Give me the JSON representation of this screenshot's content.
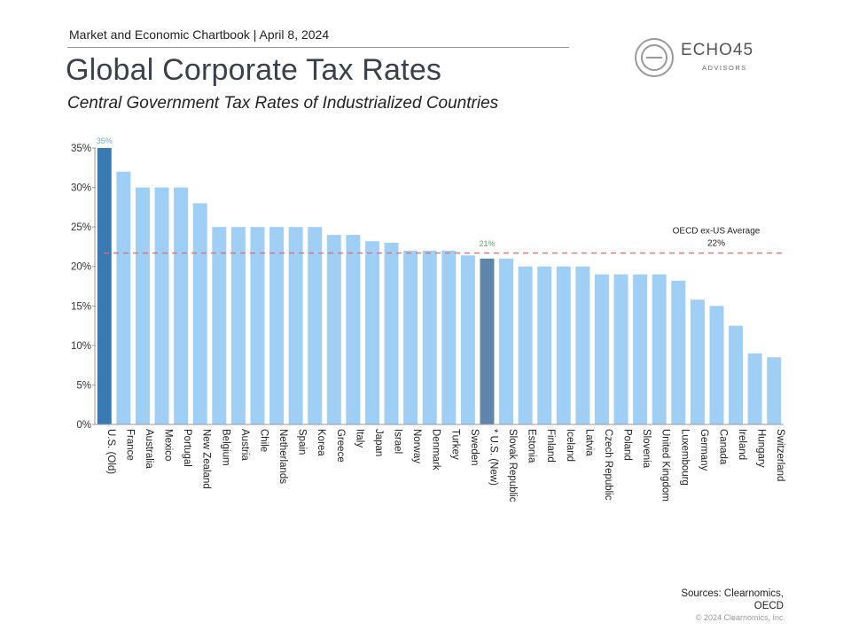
{
  "header": {
    "chartbook": "Market and Economic Chartbook | April 8, 2024",
    "title": "Global Corporate Tax Rates",
    "subtitle": "Central Government Tax Rates of Industrialized Countries"
  },
  "logo": {
    "name": "ECHO45",
    "sub": "ADVISORS"
  },
  "footer": {
    "sources_line1": "Sources: Clearnomics,",
    "sources_line2": "OECD",
    "copyright": "© 2024 Clearnomics, Inc."
  },
  "colors": {
    "bar": "#9fcff5",
    "highlight_old": "#3a7ab3",
    "highlight_new": "#5d86aa",
    "average_line": "#e07070",
    "label_old": "#6fa3d4",
    "label_new": "#59a563"
  },
  "chart_data": {
    "type": "bar",
    "categories": [
      "U.S. (Old)",
      "France",
      "Australia",
      "Mexico",
      "Portugal",
      "New Zealand",
      "Belgium",
      "Austria",
      "Chile",
      "Netherlands",
      "Spain",
      "Korea",
      "Greece",
      "Italy",
      "Japan",
      "Israel",
      "Norway",
      "Denmark",
      "Turkey",
      "Sweden",
      "* U.S. (New)",
      "Slovak Republic",
      "Estonia",
      "Finland",
      "Iceland",
      "Latvia",
      "Czech Republic",
      "Poland",
      "Slovenia",
      "United Kingdom",
      "Luxembourg",
      "Germany",
      "Canada",
      "Ireland",
      "Hungary",
      "Switzerland"
    ],
    "values": [
      35,
      32,
      30,
      30,
      30,
      28,
      25,
      25,
      25,
      25,
      25,
      25,
      24,
      24,
      23.2,
      23,
      22,
      22,
      22,
      21.4,
      21,
      21,
      20,
      20,
      20,
      20,
      19,
      19,
      19,
      19,
      18.2,
      15.8,
      15,
      12.5,
      9,
      8.5
    ],
    "yticks": [
      "0%",
      "5%",
      "10%",
      "15%",
      "20%",
      "25%",
      "30%",
      "35%"
    ],
    "ylim": [
      0,
      35
    ],
    "average": {
      "value": 21.7,
      "label": "OECD ex-US Average",
      "value_label": "22%"
    },
    "annotations": {
      "old": "35%",
      "new": "21%"
    },
    "highlight_old_index": 0,
    "highlight_new_index": 20
  }
}
